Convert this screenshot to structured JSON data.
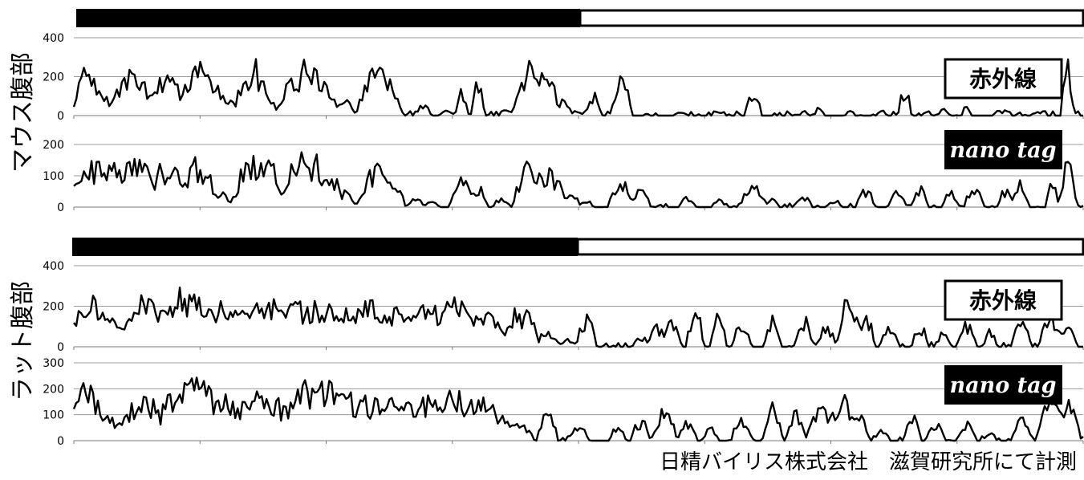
{
  "groups": [
    {
      "ylabel": "マウス腹部",
      "light_phase_fraction": 0.5
    },
    {
      "ylabel": "ラット腹部",
      "light_phase_fraction": 0.5
    }
  ],
  "labels": {
    "infrared": "赤外線",
    "nanotag": "nano tag"
  },
  "footer": "日精バイリス株式会社　滋賀研究所にて計測",
  "chart_data": [
    {
      "type": "line",
      "group": "マウス腹部",
      "series_label": "赤外線",
      "ylim": [
        0,
        400
      ],
      "yticks": [
        0,
        200,
        400
      ],
      "x_count": 400,
      "bursts": [
        [
          0.02,
          0.01,
          290
        ],
        [
          0.035,
          0.012,
          120
        ],
        [
          0.06,
          0.008,
          150
        ],
        [
          0.075,
          0.012,
          300
        ],
        [
          0.1,
          0.004,
          180
        ],
        [
          0.12,
          0.012,
          230
        ],
        [
          0.14,
          0.006,
          130
        ],
        [
          0.16,
          0.012,
          280
        ],
        [
          0.185,
          0.006,
          180
        ],
        [
          0.2,
          0.008,
          80
        ],
        [
          0.23,
          0.012,
          300
        ],
        [
          0.25,
          0.006,
          120
        ],
        [
          0.28,
          0.006,
          220
        ],
        [
          0.3,
          0.018,
          290
        ],
        [
          0.33,
          0.008,
          120
        ],
        [
          0.35,
          0.006,
          90
        ],
        [
          0.39,
          0.012,
          290
        ],
        [
          0.41,
          0.006,
          200
        ],
        [
          0.45,
          0.005,
          60
        ],
        [
          0.48,
          0.005,
          30
        ],
        [
          0.5,
          0.004,
          160
        ],
        [
          0.52,
          0.004,
          200
        ],
        [
          0.56,
          0.005,
          40
        ],
        [
          0.59,
          0.012,
          290
        ],
        [
          0.61,
          0.008,
          210
        ],
        [
          0.63,
          0.006,
          90
        ],
        [
          0.67,
          0.005,
          130
        ],
        [
          0.705,
          0.006,
          260
        ],
        [
          0.78,
          0.003,
          20
        ],
        [
          0.83,
          0.003,
          25
        ],
        [
          0.875,
          0.005,
          160
        ],
        [
          0.94,
          0.003,
          20
        ],
        [
          0.96,
          0.003,
          50
        ],
        [
          1.0,
          0.003,
          30
        ],
        [
          1.04,
          0.003,
          40
        ],
        [
          1.07,
          0.004,
          170
        ],
        [
          1.12,
          0.003,
          40
        ],
        [
          1.15,
          0.003,
          70
        ],
        [
          1.2,
          0.003,
          30
        ],
        [
          1.24,
          0.003,
          25
        ],
        [
          1.28,
          0.004,
          290
        ]
      ]
    },
    {
      "type": "line",
      "group": "マウス腹部",
      "series_label": "nano tag",
      "ylim": [
        0,
        200
      ],
      "yticks": [
        0,
        100,
        200
      ],
      "x_count": 400,
      "bursts": [
        [
          0.02,
          0.012,
          170
        ],
        [
          0.04,
          0.012,
          180
        ],
        [
          0.06,
          0.008,
          140
        ],
        [
          0.08,
          0.012,
          200
        ],
        [
          0.1,
          0.006,
          80
        ],
        [
          0.12,
          0.012,
          160
        ],
        [
          0.15,
          0.006,
          90
        ],
        [
          0.16,
          0.012,
          170
        ],
        [
          0.19,
          0.006,
          60
        ],
        [
          0.21,
          0.006,
          40
        ],
        [
          0.23,
          0.012,
          190
        ],
        [
          0.25,
          0.008,
          170
        ],
        [
          0.28,
          0.006,
          130
        ],
        [
          0.3,
          0.018,
          190
        ],
        [
          0.33,
          0.008,
          120
        ],
        [
          0.35,
          0.006,
          60
        ],
        [
          0.39,
          0.012,
          140
        ],
        [
          0.41,
          0.008,
          90
        ],
        [
          0.44,
          0.005,
          40
        ],
        [
          0.46,
          0.005,
          20
        ],
        [
          0.5,
          0.008,
          100
        ],
        [
          0.52,
          0.006,
          80
        ],
        [
          0.55,
          0.005,
          30
        ],
        [
          0.59,
          0.012,
          160
        ],
        [
          0.61,
          0.012,
          130
        ],
        [
          0.64,
          0.006,
          60
        ],
        [
          0.66,
          0.004,
          30
        ],
        [
          0.705,
          0.008,
          90
        ],
        [
          0.73,
          0.006,
          60
        ],
        [
          0.79,
          0.005,
          40
        ],
        [
          0.83,
          0.004,
          30
        ],
        [
          0.875,
          0.008,
          80
        ],
        [
          0.9,
          0.004,
          30
        ],
        [
          0.94,
          0.005,
          40
        ],
        [
          0.98,
          0.004,
          30
        ],
        [
          1.02,
          0.006,
          60
        ],
        [
          1.06,
          0.005,
          80
        ],
        [
          1.09,
          0.005,
          70
        ],
        [
          1.13,
          0.005,
          60
        ],
        [
          1.16,
          0.006,
          90
        ],
        [
          1.2,
          0.005,
          70
        ],
        [
          1.22,
          0.005,
          90
        ],
        [
          1.26,
          0.004,
          90
        ],
        [
          1.28,
          0.006,
          150
        ]
      ]
    },
    {
      "type": "line",
      "group": "ラット腹部",
      "series_label": "赤外線",
      "ylim": [
        0,
        400
      ],
      "yticks": [
        0,
        200,
        400
      ],
      "x_count": 420,
      "bursts": [
        [
          0.02,
          0.014,
          270
        ],
        [
          0.04,
          0.01,
          210
        ],
        [
          0.07,
          0.008,
          170
        ],
        [
          0.09,
          0.014,
          260
        ],
        [
          0.11,
          0.01,
          200
        ],
        [
          0.14,
          0.02,
          300
        ],
        [
          0.16,
          0.014,
          250
        ],
        [
          0.19,
          0.016,
          260
        ],
        [
          0.21,
          0.012,
          220
        ],
        [
          0.23,
          0.012,
          200
        ],
        [
          0.25,
          0.02,
          250
        ],
        [
          0.28,
          0.014,
          230
        ],
        [
          0.3,
          0.016,
          250
        ],
        [
          0.33,
          0.02,
          230
        ],
        [
          0.36,
          0.012,
          220
        ],
        [
          0.38,
          0.016,
          240
        ],
        [
          0.41,
          0.012,
          230
        ],
        [
          0.43,
          0.012,
          170
        ],
        [
          0.46,
          0.016,
          250
        ],
        [
          0.49,
          0.012,
          260
        ],
        [
          0.51,
          0.012,
          200
        ],
        [
          0.53,
          0.008,
          230
        ],
        [
          0.55,
          0.01,
          130
        ],
        [
          0.57,
          0.008,
          220
        ],
        [
          0.585,
          0.006,
          200
        ],
        [
          0.61,
          0.008,
          80
        ],
        [
          0.635,
          0.006,
          40
        ],
        [
          0.66,
          0.006,
          180
        ],
        [
          0.73,
          0.005,
          60
        ],
        [
          0.75,
          0.006,
          120
        ],
        [
          0.77,
          0.006,
          140
        ],
        [
          0.8,
          0.005,
          230
        ],
        [
          0.83,
          0.005,
          200
        ],
        [
          0.86,
          0.006,
          140
        ],
        [
          0.9,
          0.005,
          160
        ],
        [
          0.94,
          0.005,
          170
        ],
        [
          0.97,
          0.006,
          120
        ],
        [
          1.0,
          0.008,
          290
        ],
        [
          1.02,
          0.006,
          160
        ],
        [
          1.05,
          0.006,
          100
        ],
        [
          1.09,
          0.005,
          120
        ],
        [
          1.12,
          0.005,
          80
        ],
        [
          1.15,
          0.006,
          130
        ],
        [
          1.18,
          0.004,
          90
        ],
        [
          1.22,
          0.006,
          160
        ],
        [
          1.26,
          0.008,
          180
        ],
        [
          1.28,
          0.006,
          140
        ]
      ]
    },
    {
      "type": "line",
      "group": "ラット腹部",
      "series_label": "nano tag",
      "ylim": [
        0,
        300
      ],
      "yticks": [
        0,
        100,
        200,
        300
      ],
      "x_count": 420,
      "bursts": [
        [
          0.02,
          0.014,
          240
        ],
        [
          0.04,
          0.01,
          130
        ],
        [
          0.07,
          0.008,
          120
        ],
        [
          0.09,
          0.014,
          200
        ],
        [
          0.11,
          0.01,
          120
        ],
        [
          0.14,
          0.018,
          240
        ],
        [
          0.16,
          0.014,
          280
        ],
        [
          0.19,
          0.016,
          200
        ],
        [
          0.21,
          0.012,
          160
        ],
        [
          0.23,
          0.012,
          220
        ],
        [
          0.25,
          0.02,
          200
        ],
        [
          0.28,
          0.014,
          140
        ],
        [
          0.3,
          0.016,
          240
        ],
        [
          0.33,
          0.016,
          260
        ],
        [
          0.36,
          0.012,
          200
        ],
        [
          0.38,
          0.016,
          180
        ],
        [
          0.41,
          0.012,
          170
        ],
        [
          0.43,
          0.012,
          150
        ],
        [
          0.46,
          0.016,
          200
        ],
        [
          0.49,
          0.012,
          220
        ],
        [
          0.51,
          0.012,
          180
        ],
        [
          0.53,
          0.01,
          200
        ],
        [
          0.55,
          0.01,
          120
        ],
        [
          0.57,
          0.008,
          100
        ],
        [
          0.58,
          0.006,
          60
        ],
        [
          0.61,
          0.006,
          140
        ],
        [
          0.65,
          0.006,
          70
        ],
        [
          0.7,
          0.005,
          60
        ],
        [
          0.73,
          0.006,
          90
        ],
        [
          0.76,
          0.008,
          130
        ],
        [
          0.79,
          0.006,
          80
        ],
        [
          0.82,
          0.005,
          60
        ],
        [
          0.86,
          0.006,
          110
        ],
        [
          0.9,
          0.006,
          150
        ],
        [
          0.93,
          0.006,
          120
        ],
        [
          0.96,
          0.008,
          160
        ],
        [
          0.99,
          0.01,
          190
        ],
        [
          1.01,
          0.006,
          130
        ],
        [
          1.04,
          0.005,
          50
        ],
        [
          1.08,
          0.005,
          120
        ],
        [
          1.11,
          0.006,
          80
        ],
        [
          1.15,
          0.006,
          90
        ],
        [
          1.18,
          0.004,
          40
        ],
        [
          1.22,
          0.006,
          120
        ],
        [
          1.26,
          0.01,
          200
        ],
        [
          1.28,
          0.008,
          160
        ]
      ]
    }
  ]
}
